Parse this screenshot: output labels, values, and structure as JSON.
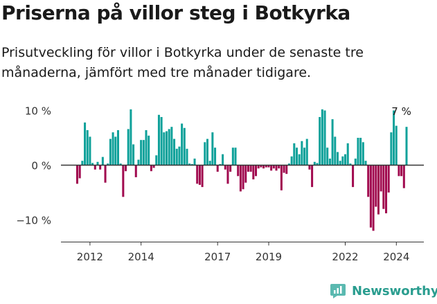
{
  "header": {
    "title": "Priserna på villor steg i Botkyrka",
    "subtitle": "Prisutveckling för villor i Botkyrka under de senaste tre månaderna, jämfört med tre månader tidigare."
  },
  "brand": {
    "name": "Newsworthy",
    "icon": "newsworthy-logo-icon"
  },
  "colors": {
    "positive": "#0fa19a",
    "negative": "#a10a4f",
    "axis": "#333333"
  },
  "chart_data": {
    "type": "bar",
    "title": "",
    "xlabel": "",
    "ylabel": "",
    "ylim": [
      -12.8,
      10.6
    ],
    "y_ticks": [
      {
        "value": 10,
        "label": "10 %"
      },
      {
        "value": 0,
        "label": "0 %"
      },
      {
        "value": -10,
        "label": "−10 %"
      }
    ],
    "x_ticks": [
      {
        "index": 5,
        "label": "2012"
      },
      {
        "index": 25,
        "label": "2014"
      },
      {
        "index": 55,
        "label": "2017"
      },
      {
        "index": 75,
        "label": "2019"
      },
      {
        "index": 105,
        "label": "2022"
      },
      {
        "index": 125,
        "label": "2024"
      }
    ],
    "end_label": {
      "text": "7 %",
      "index": 127
    },
    "grid": false,
    "legend": "none",
    "categories_note": "monthly observations",
    "values": [
      -3.4,
      -2.4,
      0.8,
      7.8,
      6.4,
      5.2,
      0.4,
      -0.8,
      0.6,
      -0.8,
      1.5,
      -3.2,
      0.3,
      4.8,
      6.0,
      5.2,
      6.4,
      0.3,
      -5.8,
      -1.1,
      6.6,
      10.2,
      3.8,
      -2.2,
      1.0,
      4.6,
      4.6,
      6.4,
      5.4,
      -1.1,
      -0.5,
      1.8,
      9.2,
      8.8,
      6.0,
      6.2,
      6.6,
      7.0,
      4.8,
      3.0,
      3.4,
      7.6,
      6.8,
      3.0,
      0.3,
      0.2,
      1.2,
      -3.4,
      -3.6,
      -4.0,
      4.2,
      4.8,
      0.8,
      6.0,
      3.2,
      -1.2,
      0.2,
      2.0,
      -0.8,
      -3.4,
      -1.2,
      3.2,
      3.2,
      -2.0,
      -4.8,
      -4.4,
      -3.2,
      -1.2,
      -1.2,
      -2.6,
      -2.0,
      -0.6,
      -0.4,
      -0.6,
      -0.4,
      -0.4,
      -1.0,
      -0.6,
      -1.0,
      -0.6,
      -4.6,
      -1.4,
      -1.6,
      0.3,
      1.6,
      4.0,
      3.2,
      2.0,
      4.4,
      3.2,
      4.8,
      -0.8,
      -4.0,
      0.6,
      0.4,
      8.8,
      10.2,
      10.0,
      3.2,
      1.2,
      8.4,
      5.2,
      2.4,
      0.8,
      1.6,
      2.0,
      4.0,
      0.3,
      -4.0,
      1.2,
      5.0,
      5.0,
      4.2,
      0.8,
      -5.8,
      -11.4,
      -12.0,
      -7.6,
      -9.0,
      -4.8,
      -8.0,
      -8.8,
      -5.0,
      6.0,
      10.0,
      7.2,
      -2.0,
      -2.0,
      -4.2,
      7.0
    ]
  }
}
